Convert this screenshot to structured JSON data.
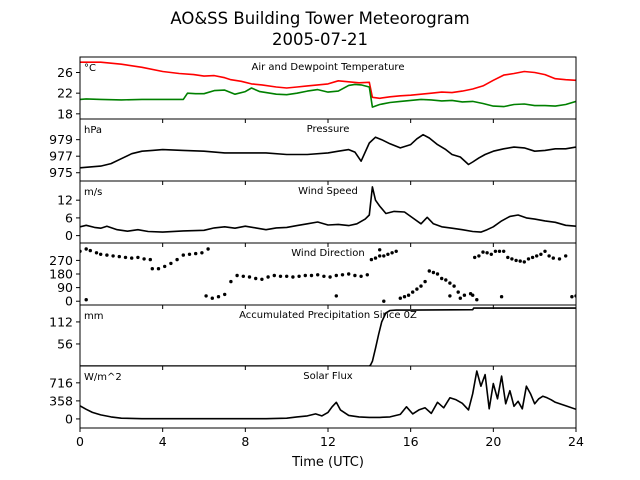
{
  "title": "AO&SS Building Tower Meteorogram",
  "subtitle": "2005-07-21",
  "xlabel": "Time (UTC)",
  "chart_data": [
    {
      "type": "line",
      "title": "Air and Dewpoint Temperature",
      "unit": "°C",
      "xlim": [
        0,
        24
      ],
      "ylim": [
        17,
        29
      ],
      "yticks": [
        18,
        22,
        26
      ],
      "ytick_labels": [
        "18",
        "22",
        "26"
      ],
      "series": [
        {
          "color": "#ff0000",
          "x": [
            0,
            1,
            2,
            3,
            4,
            4.8,
            5.5,
            6,
            6.5,
            7,
            7.3,
            7.8,
            8.3,
            8.8,
            9.5,
            10,
            10.5,
            11,
            11.5,
            12,
            12.5,
            13,
            13.5,
            14,
            14.15,
            14.5,
            15,
            15.5,
            16,
            16.5,
            17,
            17.5,
            18,
            18.5,
            19,
            19.5,
            20,
            20.5,
            21,
            21.5,
            22,
            22.5,
            23,
            23.5,
            24
          ],
          "y": [
            28.0,
            28.0,
            27.6,
            27.0,
            26.2,
            25.8,
            25.6,
            25.3,
            25.4,
            25.0,
            24.6,
            24.3,
            23.8,
            23.6,
            23.2,
            23.0,
            23.2,
            23.4,
            23.6,
            23.8,
            24.4,
            24.2,
            24.0,
            24.1,
            21.2,
            21.0,
            21.3,
            21.5,
            21.6,
            21.8,
            22.0,
            22.2,
            22.1,
            22.4,
            22.8,
            23.4,
            24.5,
            25.5,
            25.8,
            26.2,
            26.0,
            25.6,
            24.8,
            24.6,
            24.5
          ]
        },
        {
          "color": "#008000",
          "x": [
            0,
            0.3,
            1,
            2,
            3,
            4,
            5,
            5.2,
            5.6,
            6,
            6.5,
            7,
            7.5,
            8,
            8.3,
            8.7,
            9.2,
            9.5,
            10,
            10.5,
            11,
            11.5,
            12,
            12.5,
            13,
            13.3,
            13.6,
            14,
            14.15,
            14.5,
            15,
            15.5,
            16,
            16.5,
            17,
            17.5,
            18,
            18.5,
            19,
            19.5,
            20,
            20.5,
            21,
            21.5,
            22,
            22.5,
            23,
            23.5,
            24
          ],
          "y": [
            20.8,
            20.9,
            20.8,
            20.7,
            20.8,
            20.8,
            20.8,
            22.0,
            21.9,
            21.9,
            22.5,
            22.6,
            21.8,
            22.3,
            23.0,
            22.3,
            22.0,
            21.8,
            21.7,
            22.0,
            22.4,
            22.7,
            22.2,
            22.4,
            23.5,
            23.7,
            23.6,
            23.2,
            19.3,
            19.8,
            20.2,
            20.4,
            20.6,
            20.8,
            20.7,
            20.5,
            20.6,
            20.3,
            20.4,
            20.0,
            19.5,
            19.4,
            19.8,
            19.9,
            19.6,
            19.6,
            19.5,
            19.8,
            20.4
          ]
        }
      ]
    },
    {
      "type": "line",
      "title": "Pressure",
      "unit": "hPa",
      "xlim": [
        0,
        24
      ],
      "ylim": [
        974,
        981.5
      ],
      "yticks": [
        975,
        977,
        979
      ],
      "ytick_labels": [
        "975",
        "977",
        "979"
      ],
      "series": [
        {
          "color": "#000000",
          "x": [
            0,
            0.5,
            1,
            1.5,
            2,
            2.5,
            3,
            3.5,
            4,
            5,
            6,
            7,
            8,
            9,
            10,
            11,
            12,
            12.5,
            13,
            13.3,
            13.6,
            14,
            14.3,
            14.6,
            15,
            15.5,
            16,
            16.3,
            16.6,
            16.9,
            17.3,
            17.7,
            18,
            18.4,
            18.8,
            19,
            19.3,
            19.6,
            20,
            20.5,
            21,
            21.5,
            22,
            22.5,
            23,
            23.5,
            24
          ],
          "y": [
            975.6,
            975.7,
            975.8,
            976.1,
            976.7,
            977.3,
            977.6,
            977.7,
            977.8,
            977.7,
            977.6,
            977.4,
            977.4,
            977.4,
            977.2,
            977.2,
            977.4,
            977.6,
            977.8,
            977.5,
            976.4,
            978.6,
            979.3,
            979.0,
            978.5,
            978.0,
            978.4,
            979.1,
            979.6,
            979.2,
            978.4,
            977.8,
            977.2,
            976.9,
            976.0,
            976.3,
            976.8,
            977.2,
            977.6,
            977.9,
            978.1,
            978.0,
            977.6,
            977.7,
            977.9,
            977.9,
            978.1
          ]
        }
      ]
    },
    {
      "type": "line",
      "title": "Wind Speed",
      "unit": "m/s",
      "xlim": [
        0,
        24
      ],
      "ylim": [
        -2.5,
        18.5
      ],
      "yticks": [
        0,
        6,
        12
      ],
      "ytick_labels": [
        "0",
        "6",
        "12"
      ],
      "series": [
        {
          "color": "#000000",
          "x": [
            0,
            0.3,
            0.7,
            1,
            1.3,
            1.8,
            2.3,
            2.8,
            3.3,
            4,
            5,
            6,
            6.5,
            7,
            7.5,
            8,
            8.5,
            9,
            9.5,
            10,
            10.5,
            11,
            11.5,
            12,
            12.5,
            13,
            13.4,
            13.8,
            14,
            14.15,
            14.3,
            14.5,
            14.8,
            15.2,
            15.7,
            16.1,
            16.5,
            16.8,
            17.1,
            17.5,
            18,
            18.5,
            19,
            19.4,
            19.7,
            20,
            20.4,
            20.8,
            21.2,
            21.6,
            22,
            22.5,
            23,
            23.5,
            24
          ],
          "y": [
            3.0,
            3.5,
            2.8,
            2.5,
            3.2,
            2.0,
            1.5,
            2.0,
            1.4,
            1.2,
            1.6,
            1.8,
            2.6,
            3.0,
            2.5,
            3.2,
            2.6,
            2.0,
            2.6,
            2.8,
            3.4,
            4.0,
            4.6,
            3.6,
            3.8,
            3.4,
            4.0,
            5.6,
            7.0,
            16.5,
            12.0,
            10.0,
            7.5,
            8.2,
            8.0,
            6.0,
            4.0,
            6.2,
            4.0,
            3.0,
            2.5,
            2.0,
            1.4,
            1.2,
            2.0,
            3.0,
            5.0,
            6.5,
            7.0,
            6.0,
            5.6,
            5.0,
            4.5,
            3.5,
            3.2
          ]
        }
      ]
    },
    {
      "type": "scatter",
      "title": "Wind Direction",
      "xlim": [
        0,
        24
      ],
      "ylim": [
        -25,
        385
      ],
      "yticks": [
        0,
        90,
        180,
        270
      ],
      "ytick_labels": [
        "0",
        "90",
        "180",
        "270"
      ],
      "series": [
        {
          "color": "#000000",
          "x": [
            0,
            0.3,
            0.5,
            0.8,
            1,
            1.3,
            1.6,
            1.9,
            2.2,
            2.5,
            2.8,
            3.1,
            3.4,
            3.5,
            3.8,
            4.1,
            4.4,
            4.7,
            5,
            5.3,
            5.6,
            5.9,
            6.1,
            6.4,
            6.7,
            7,
            7.3,
            7.6,
            7.9,
            8.2,
            8.5,
            8.8,
            9.1,
            9.4,
            9.7,
            10,
            10.3,
            10.6,
            10.9,
            11.2,
            11.5,
            11.8,
            12.1,
            12.4,
            12.7,
            13,
            13.3,
            13.6,
            13.9,
            14.1,
            14.3,
            14.5,
            14.7,
            14.9,
            15.1,
            15.3,
            15.5,
            15.7,
            15.9,
            16.1,
            16.3,
            16.5,
            16.7,
            16.9,
            17.1,
            17.3,
            17.5,
            17.7,
            17.9,
            18.1,
            18.3,
            18.6,
            18.9,
            19.1,
            19.3,
            19.5,
            19.7,
            19.9,
            20.1,
            20.3,
            20.5,
            20.7,
            20.9,
            21.1,
            21.3,
            21.5,
            21.7,
            21.9,
            22.1,
            22.3,
            22.5,
            22.7,
            22.9,
            23.2,
            23.5,
            23.8,
            24
          ],
          "y": [
            330,
            345,
            335,
            320,
            310,
            305,
            300,
            295,
            290,
            285,
            290,
            280,
            275,
            215,
            215,
            230,
            250,
            275,
            305,
            310,
            315,
            320,
            35,
            20,
            30,
            45,
            130,
            170,
            165,
            160,
            150,
            145,
            160,
            170,
            165,
            165,
            160,
            165,
            170,
            170,
            175,
            165,
            160,
            170,
            175,
            180,
            170,
            165,
            175,
            275,
            285,
            300,
            300,
            310,
            320,
            330,
            20,
            30,
            40,
            60,
            80,
            100,
            130,
            200,
            190,
            180,
            150,
            140,
            120,
            100,
            60,
            40,
            50,
            290,
            300,
            325,
            320,
            310,
            330,
            330,
            330,
            290,
            280,
            270,
            265,
            260,
            280,
            290,
            300,
            310,
            330,
            300,
            285,
            280,
            300,
            30,
            35
          ]
        },
        {
          "color": "#000000",
          "x": [
            0.3,
            6.2,
            12.4,
            14.5,
            14.7,
            17.9,
            18.4,
            19.0,
            19.2,
            20.4
          ],
          "y": [
            10,
            345,
            35,
            340,
            0,
            35,
            20,
            40,
            10,
            30
          ]
        }
      ]
    },
    {
      "type": "line",
      "title": "Accumulated Precipitation Since 0Z",
      "unit": "mm",
      "xlim": [
        0,
        24
      ],
      "ylim": [
        0,
        155
      ],
      "yticks": [
        56,
        112
      ],
      "ytick_labels": [
        "56",
        "112"
      ],
      "series": [
        {
          "color": "#000000",
          "x": [
            0,
            14,
            14.05,
            14.15,
            14.3,
            14.45,
            14.6,
            14.8,
            15,
            15.3,
            16,
            19,
            19.05,
            24
          ],
          "y": [
            0,
            0,
            2,
            12,
            45,
            80,
            112,
            135,
            141,
            142,
            142,
            143,
            147,
            147
          ]
        }
      ]
    },
    {
      "type": "line",
      "title": "Solar Flux",
      "unit": "W/m^2",
      "xlim": [
        0,
        24
      ],
      "ylim": [
        -180,
        1050
      ],
      "yticks": [
        0,
        358,
        716
      ],
      "ytick_labels": [
        "0",
        "358",
        "716"
      ],
      "series": [
        {
          "color": "#000000",
          "x": [
            0,
            0.3,
            0.6,
            1,
            1.5,
            2,
            3,
            4,
            5,
            6,
            7,
            8,
            9,
            10,
            10.5,
            11,
            11.4,
            11.7,
            12,
            12.2,
            12.4,
            12.6,
            13,
            13.5,
            14,
            14.5,
            15,
            15.5,
            15.8,
            16.1,
            16.4,
            16.7,
            17,
            17.3,
            17.6,
            17.9,
            18.2,
            18.5,
            18.8,
            19,
            19.2,
            19.4,
            19.6,
            19.8,
            20,
            20.2,
            20.4,
            20.6,
            20.8,
            21,
            21.2,
            21.4,
            21.6,
            21.8,
            22,
            22.2,
            22.4,
            22.6,
            22.8,
            23,
            23.5,
            24
          ],
          "y": [
            260,
            190,
            130,
            80,
            40,
            15,
            5,
            5,
            5,
            5,
            5,
            5,
            5,
            15,
            40,
            60,
            100,
            60,
            130,
            240,
            330,
            180,
            70,
            40,
            30,
            30,
            40,
            90,
            240,
            100,
            180,
            220,
            110,
            330,
            220,
            420,
            380,
            310,
            180,
            500,
            950,
            650,
            880,
            200,
            700,
            400,
            850,
            300,
            560,
            250,
            350,
            200,
            650,
            500,
            300,
            400,
            450,
            420,
            380,
            330,
            260,
            190
          ]
        }
      ]
    }
  ],
  "xaxis": {
    "ticks": [
      0,
      4,
      8,
      12,
      16,
      20,
      24
    ],
    "tick_labels": [
      "0",
      "4",
      "8",
      "12",
      "16",
      "20",
      "24"
    ]
  }
}
